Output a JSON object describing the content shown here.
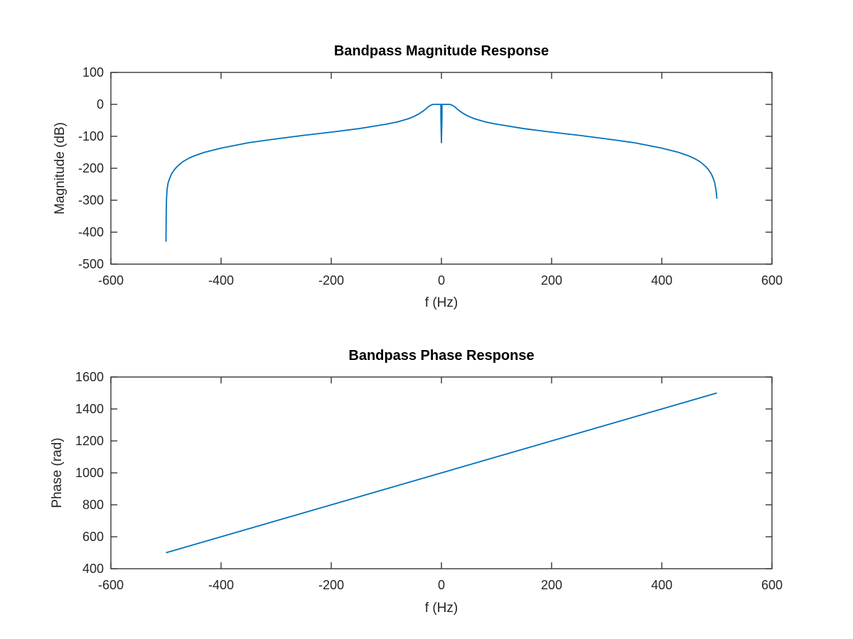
{
  "colors": {
    "series": "#0072bd",
    "axis": "#262626",
    "background": "#ffffff"
  },
  "chart_data": [
    {
      "type": "line",
      "title": "Bandpass Magnitude Response",
      "xlabel": "f (Hz)",
      "ylabel": "Magnitude (dB)",
      "xlim": [
        -600,
        600
      ],
      "ylim": [
        -500,
        100
      ],
      "xticks": [
        -600,
        -400,
        -200,
        0,
        200,
        400,
        600
      ],
      "yticks": [
        -500,
        -400,
        -300,
        -200,
        -100,
        0,
        100
      ],
      "grid": false,
      "series": [
        {
          "color": "#0072bd",
          "x": [
            -500,
            -499.5,
            -499,
            -498,
            -496,
            -493,
            -490,
            -485,
            -480,
            -470,
            -460,
            -450,
            -430,
            -400,
            -350,
            -300,
            -250,
            -200,
            -150,
            -100,
            -80,
            -60,
            -50,
            -40,
            -30,
            -25,
            -20,
            -15,
            -12,
            -10,
            -5,
            -2,
            -1,
            -1,
            -0.5,
            0,
            0.5,
            1,
            1,
            2,
            5,
            10,
            12,
            15,
            20,
            25,
            30,
            40,
            50,
            60,
            80,
            100,
            150,
            200,
            250,
            300,
            350,
            400,
            430,
            450,
            460,
            470,
            480,
            485,
            490,
            493,
            496,
            498,
            499,
            499.5,
            500
          ],
          "y": [
            -430,
            -330,
            -295,
            -265,
            -245,
            -230,
            -218,
            -205,
            -195,
            -180,
            -170,
            -162,
            -150,
            -137,
            -120,
            -108,
            -97,
            -87,
            -76,
            -62,
            -55,
            -45,
            -38,
            -29,
            -17,
            -9,
            -3,
            0,
            0,
            0,
            0,
            0,
            0,
            -40,
            -80,
            -120,
            -80,
            -40,
            0,
            0,
            0,
            0,
            0,
            0,
            -3,
            -9,
            -17,
            -29,
            -38,
            -45,
            -55,
            -62,
            -76,
            -87,
            -97,
            -108,
            -120,
            -137,
            -150,
            -162,
            -170,
            -180,
            -195,
            -205,
            -218,
            -230,
            -245,
            -265,
            -275,
            -285,
            -295
          ]
        }
      ]
    },
    {
      "type": "line",
      "title": "Bandpass Phase Response",
      "xlabel": "f (Hz)",
      "ylabel": "Phase (rad)",
      "xlim": [
        -600,
        600
      ],
      "ylim": [
        400,
        1600
      ],
      "xticks": [
        -600,
        -400,
        -200,
        0,
        200,
        400,
        600
      ],
      "yticks": [
        400,
        600,
        800,
        1000,
        1200,
        1400,
        1600
      ],
      "grid": false,
      "series": [
        {
          "color": "#0072bd",
          "x": [
            -500,
            500
          ],
          "y": [
            500,
            1500
          ]
        }
      ]
    }
  ]
}
